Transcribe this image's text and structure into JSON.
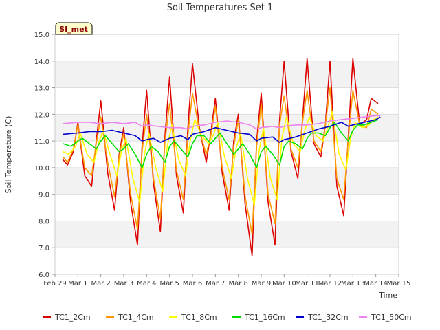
{
  "chart_data": {
    "type": "line",
    "title": "Soil Temperatures Set 1",
    "xlabel": "Time",
    "ylabel": "Soil Temperature (C)",
    "badge": "SI_met",
    "xlim": [
      0,
      15
    ],
    "ylim": [
      6.0,
      15.0
    ],
    "x_ticks": [
      0,
      1,
      2,
      3,
      4,
      5,
      6,
      7,
      8,
      9,
      10,
      11,
      12,
      13,
      14,
      15
    ],
    "x_tick_labels": [
      "Feb 29",
      "Mar 1",
      "Mar 2",
      "Mar 3",
      "Mar 4",
      "Mar 5",
      "Mar 6",
      "Mar 7",
      "Mar 8",
      "Mar 9",
      "Mar 10",
      "Mar 11",
      "Mar 12",
      "Mar 13",
      "Mar 14",
      "Mar 15"
    ],
    "y_ticks": [
      6.0,
      7.0,
      8.0,
      9.0,
      10.0,
      11.0,
      12.0,
      13.0,
      14.0,
      15.0
    ],
    "y_tick_labels": [
      "6.0",
      "7.0",
      "8.0",
      "9.0",
      "10.0",
      "11.0",
      "12.0",
      "13.0",
      "14.0",
      "15.0"
    ],
    "grid": true,
    "band_color": "#f2f2f2",
    "legend_position": "bottom",
    "series": [
      {
        "name": "TC1_2Cm",
        "color": "#dd0000",
        "x": [
          0.35,
          0.55,
          0.8,
          1.0,
          1.3,
          1.6,
          1.8,
          2.0,
          2.3,
          2.6,
          2.8,
          3.0,
          3.3,
          3.6,
          3.8,
          4.0,
          4.3,
          4.6,
          4.8,
          5.0,
          5.3,
          5.6,
          5.8,
          6.0,
          6.3,
          6.6,
          6.8,
          7.0,
          7.3,
          7.6,
          7.8,
          8.0,
          8.3,
          8.6,
          8.8,
          9.0,
          9.3,
          9.6,
          9.8,
          10.0,
          10.3,
          10.6,
          10.8,
          11.0,
          11.3,
          11.6,
          11.8,
          12.0,
          12.3,
          12.6,
          12.8,
          13.0,
          13.3,
          13.6,
          13.8,
          14.1
        ],
        "y": [
          10.3,
          10.1,
          10.6,
          11.7,
          9.7,
          9.3,
          11.0,
          12.5,
          9.8,
          8.4,
          10.5,
          11.5,
          8.7,
          7.1,
          10.8,
          12.9,
          9.4,
          7.6,
          11.2,
          13.4,
          9.7,
          8.3,
          11.5,
          13.9,
          11.5,
          10.2,
          11.3,
          12.6,
          9.8,
          8.4,
          11.0,
          12.0,
          8.6,
          6.7,
          11.0,
          12.8,
          8.7,
          7.1,
          11.8,
          14.0,
          10.6,
          9.6,
          11.8,
          14.1,
          10.9,
          10.4,
          11.6,
          14.0,
          9.3,
          8.2,
          11.2,
          14.1,
          11.6,
          11.8,
          12.6,
          12.4
        ]
      },
      {
        "name": "TC1_4Cm",
        "color": "#ff9900",
        "x": [
          0.35,
          0.55,
          0.8,
          1.0,
          1.3,
          1.6,
          1.8,
          2.0,
          2.3,
          2.6,
          2.8,
          3.0,
          3.3,
          3.6,
          3.8,
          4.0,
          4.3,
          4.6,
          4.8,
          5.0,
          5.3,
          5.6,
          5.8,
          6.0,
          6.3,
          6.6,
          6.8,
          7.0,
          7.3,
          7.6,
          7.8,
          8.0,
          8.3,
          8.6,
          8.8,
          9.0,
          9.3,
          9.6,
          9.8,
          10.0,
          10.3,
          10.6,
          10.8,
          11.0,
          11.3,
          11.6,
          11.8,
          12.0,
          12.3,
          12.6,
          12.8,
          13.0,
          13.3,
          13.6,
          13.8,
          14.1
        ],
        "y": [
          10.4,
          10.2,
          10.7,
          11.6,
          10.0,
          9.7,
          10.9,
          11.9,
          10.2,
          8.9,
          10.4,
          11.3,
          9.0,
          7.7,
          10.6,
          12.0,
          9.6,
          8.1,
          11.0,
          12.4,
          9.9,
          8.8,
          11.2,
          12.8,
          11.4,
          10.5,
          11.2,
          12.3,
          10.0,
          8.8,
          10.8,
          11.8,
          8.9,
          7.5,
          10.8,
          12.4,
          9.0,
          7.9,
          11.6,
          12.7,
          10.7,
          10.0,
          11.7,
          12.9,
          11.0,
          10.6,
          11.6,
          13.0,
          9.6,
          8.8,
          11.1,
          12.9,
          11.6,
          11.5,
          12.2,
          12.0
        ]
      },
      {
        "name": "TC1_8Cm",
        "color": "#ffff00",
        "x": [
          0.35,
          0.6,
          0.9,
          1.1,
          1.4,
          1.7,
          1.9,
          2.1,
          2.4,
          2.7,
          2.9,
          3.1,
          3.4,
          3.7,
          3.9,
          4.1,
          4.4,
          4.7,
          4.9,
          5.1,
          5.4,
          5.7,
          5.9,
          6.1,
          6.4,
          6.7,
          6.9,
          7.1,
          7.4,
          7.7,
          7.9,
          8.1,
          8.4,
          8.7,
          8.9,
          9.1,
          9.4,
          9.7,
          9.9,
          10.1,
          10.4,
          10.7,
          10.9,
          11.1,
          11.4,
          11.7,
          11.9,
          12.1,
          12.4,
          12.7,
          12.9,
          13.1,
          13.4,
          13.7,
          13.9,
          14.1
        ],
        "y": [
          10.6,
          10.5,
          10.8,
          11.3,
          10.5,
          10.2,
          10.9,
          11.4,
          10.5,
          9.7,
          10.6,
          11.1,
          9.6,
          8.7,
          10.5,
          11.3,
          10.0,
          9.1,
          10.8,
          11.6,
          10.3,
          9.7,
          11.0,
          11.8,
          11.2,
          10.9,
          11.2,
          11.7,
          10.4,
          9.6,
          10.7,
          11.3,
          9.6,
          8.6,
          10.6,
          11.5,
          9.6,
          8.8,
          11.1,
          11.9,
          10.9,
          10.6,
          11.4,
          11.9,
          11.2,
          11.0,
          11.5,
          12.1,
          10.5,
          9.9,
          11.1,
          11.7,
          11.5,
          11.6,
          11.8,
          11.9
        ]
      },
      {
        "name": "TC1_16Cm",
        "color": "#00dd00",
        "x": [
          0.35,
          0.7,
          1.0,
          1.2,
          1.5,
          1.8,
          2.0,
          2.2,
          2.5,
          2.8,
          3.0,
          3.2,
          3.5,
          3.8,
          4.0,
          4.2,
          4.5,
          4.8,
          5.0,
          5.2,
          5.5,
          5.8,
          6.0,
          6.2,
          6.5,
          6.8,
          7.0,
          7.2,
          7.5,
          7.8,
          8.0,
          8.2,
          8.5,
          8.8,
          9.0,
          9.2,
          9.5,
          9.8,
          10.0,
          10.2,
          10.5,
          10.8,
          11.0,
          11.2,
          11.5,
          11.8,
          12.0,
          12.2,
          12.5,
          12.8,
          13.0,
          13.2,
          13.5,
          13.8,
          14.1
        ],
        "y": [
          10.9,
          10.8,
          11.0,
          11.1,
          10.9,
          10.7,
          11.0,
          11.2,
          10.9,
          10.6,
          10.7,
          10.9,
          10.5,
          10.0,
          10.5,
          10.8,
          10.6,
          10.2,
          10.8,
          11.0,
          10.7,
          10.4,
          10.9,
          11.2,
          11.2,
          10.9,
          11.1,
          11.3,
          10.9,
          10.5,
          10.7,
          10.9,
          10.5,
          10.0,
          10.6,
          10.8,
          10.5,
          10.1,
          10.8,
          11.0,
          10.9,
          10.7,
          11.1,
          11.3,
          11.3,
          11.2,
          11.5,
          11.7,
          11.3,
          11.0,
          11.4,
          11.6,
          11.6,
          11.7,
          11.8
        ]
      },
      {
        "name": "TC1_32Cm",
        "color": "#0000cc",
        "x": [
          0.35,
          1.0,
          1.5,
          2.0,
          2.5,
          3.0,
          3.5,
          3.8,
          4.0,
          4.3,
          4.6,
          5.0,
          5.5,
          5.8,
          6.0,
          6.5,
          7.0,
          7.5,
          8.0,
          8.5,
          8.8,
          9.0,
          9.5,
          9.8,
          10.0,
          10.5,
          11.0,
          11.5,
          12.0,
          12.5,
          12.8,
          13.0,
          13.5,
          14.0,
          14.2
        ],
        "y": [
          11.25,
          11.3,
          11.35,
          11.35,
          11.4,
          11.3,
          11.2,
          11.0,
          11.05,
          11.1,
          10.95,
          11.1,
          11.2,
          11.05,
          11.25,
          11.35,
          11.5,
          11.4,
          11.3,
          11.25,
          11.0,
          11.1,
          11.15,
          10.95,
          11.05,
          11.15,
          11.3,
          11.45,
          11.55,
          11.7,
          11.55,
          11.6,
          11.7,
          11.8,
          11.9
        ]
      },
      {
        "name": "TC1_50Cm",
        "color": "#ee82ee",
        "x": [
          0.35,
          1.0,
          1.5,
          2.0,
          2.5,
          3.0,
          3.5,
          3.8,
          4.0,
          4.5,
          5.0,
          5.5,
          5.8,
          6.0,
          6.5,
          7.0,
          7.5,
          8.0,
          8.5,
          8.8,
          9.0,
          9.5,
          9.8,
          10.0,
          10.5,
          11.0,
          11.5,
          12.0,
          12.5,
          13.0,
          13.5,
          14.0,
          14.2
        ],
        "y": [
          11.65,
          11.7,
          11.7,
          11.65,
          11.7,
          11.65,
          11.7,
          11.55,
          11.6,
          11.55,
          11.5,
          11.5,
          11.45,
          11.55,
          11.6,
          11.7,
          11.75,
          11.7,
          11.6,
          11.45,
          11.5,
          11.55,
          11.5,
          11.55,
          11.6,
          11.6,
          11.65,
          11.75,
          11.8,
          11.85,
          11.9,
          11.95,
          11.95
        ]
      }
    ]
  }
}
